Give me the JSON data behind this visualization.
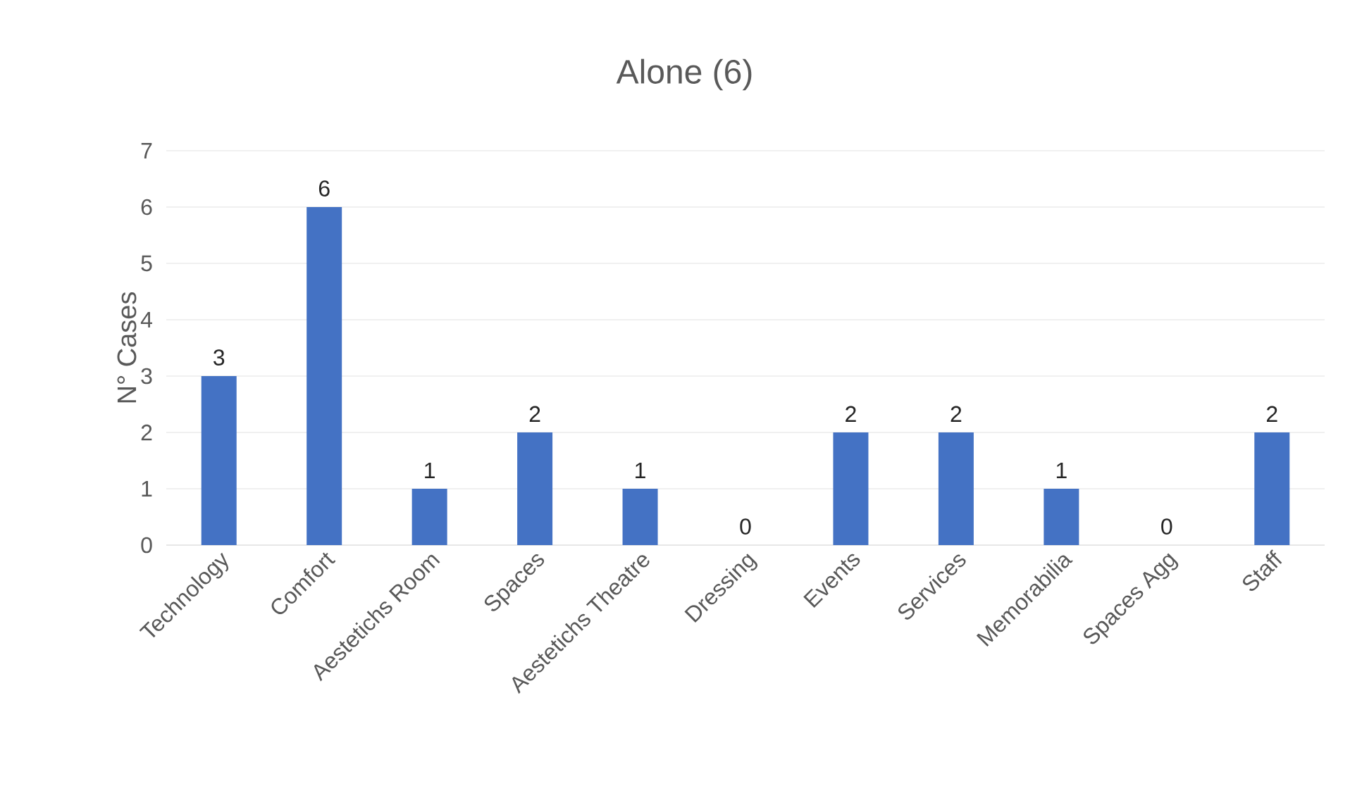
{
  "chart_data": {
    "type": "bar",
    "title": "Alone (6)",
    "ylabel": "N° Cases",
    "categories": [
      "Technology",
      "Comfort",
      "Aestetichs Room",
      "Spaces",
      "Aestetichs Theatre",
      "Dressing",
      "Events",
      "Services",
      "Memorabilia",
      "Spaces Agg",
      "Staff"
    ],
    "values": [
      3,
      6,
      1,
      2,
      1,
      0,
      2,
      2,
      1,
      0,
      2
    ],
    "color": "#4472c4",
    "ylim": [
      0,
      7
    ],
    "yticks": [
      0,
      1,
      2,
      3,
      4,
      5,
      6,
      7
    ],
    "grid": "y",
    "data_labels": true
  }
}
